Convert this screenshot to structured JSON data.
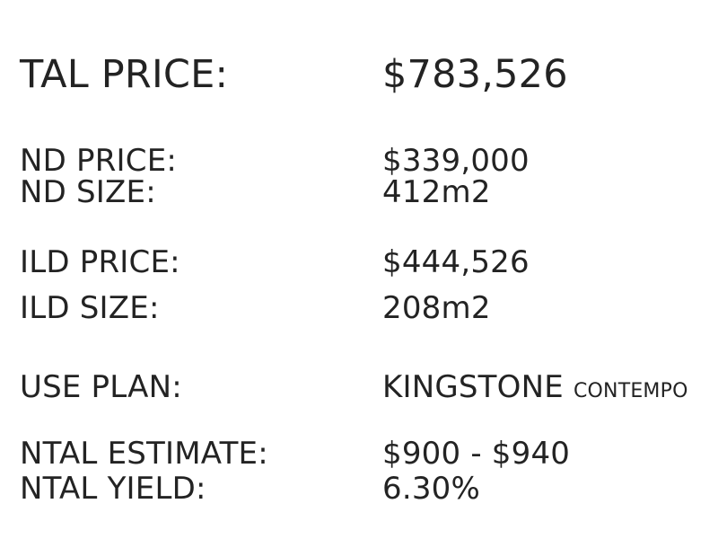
{
  "summary": {
    "total_price": {
      "label": "TAL PRICE:",
      "value": "$783,526"
    },
    "land": {
      "price_label": "ND PRICE:",
      "price_value": "$339,000",
      "size_label": "ND SIZE:",
      "size_value": "412m2"
    },
    "build": {
      "price_label": "ILD PRICE:",
      "price_value": "$444,526",
      "size_label": "ILD SIZE:",
      "size_value": "208m2"
    },
    "house_plan": {
      "label": "USE PLAN:",
      "value": "KINGSTONE",
      "style": "CONTEMPO"
    },
    "rental": {
      "estimate_label": "NTAL ESTIMATE:",
      "estimate_value": "$900 - $940",
      "yield_label": "NTAL YIELD:",
      "yield_value": "6.30%"
    }
  }
}
